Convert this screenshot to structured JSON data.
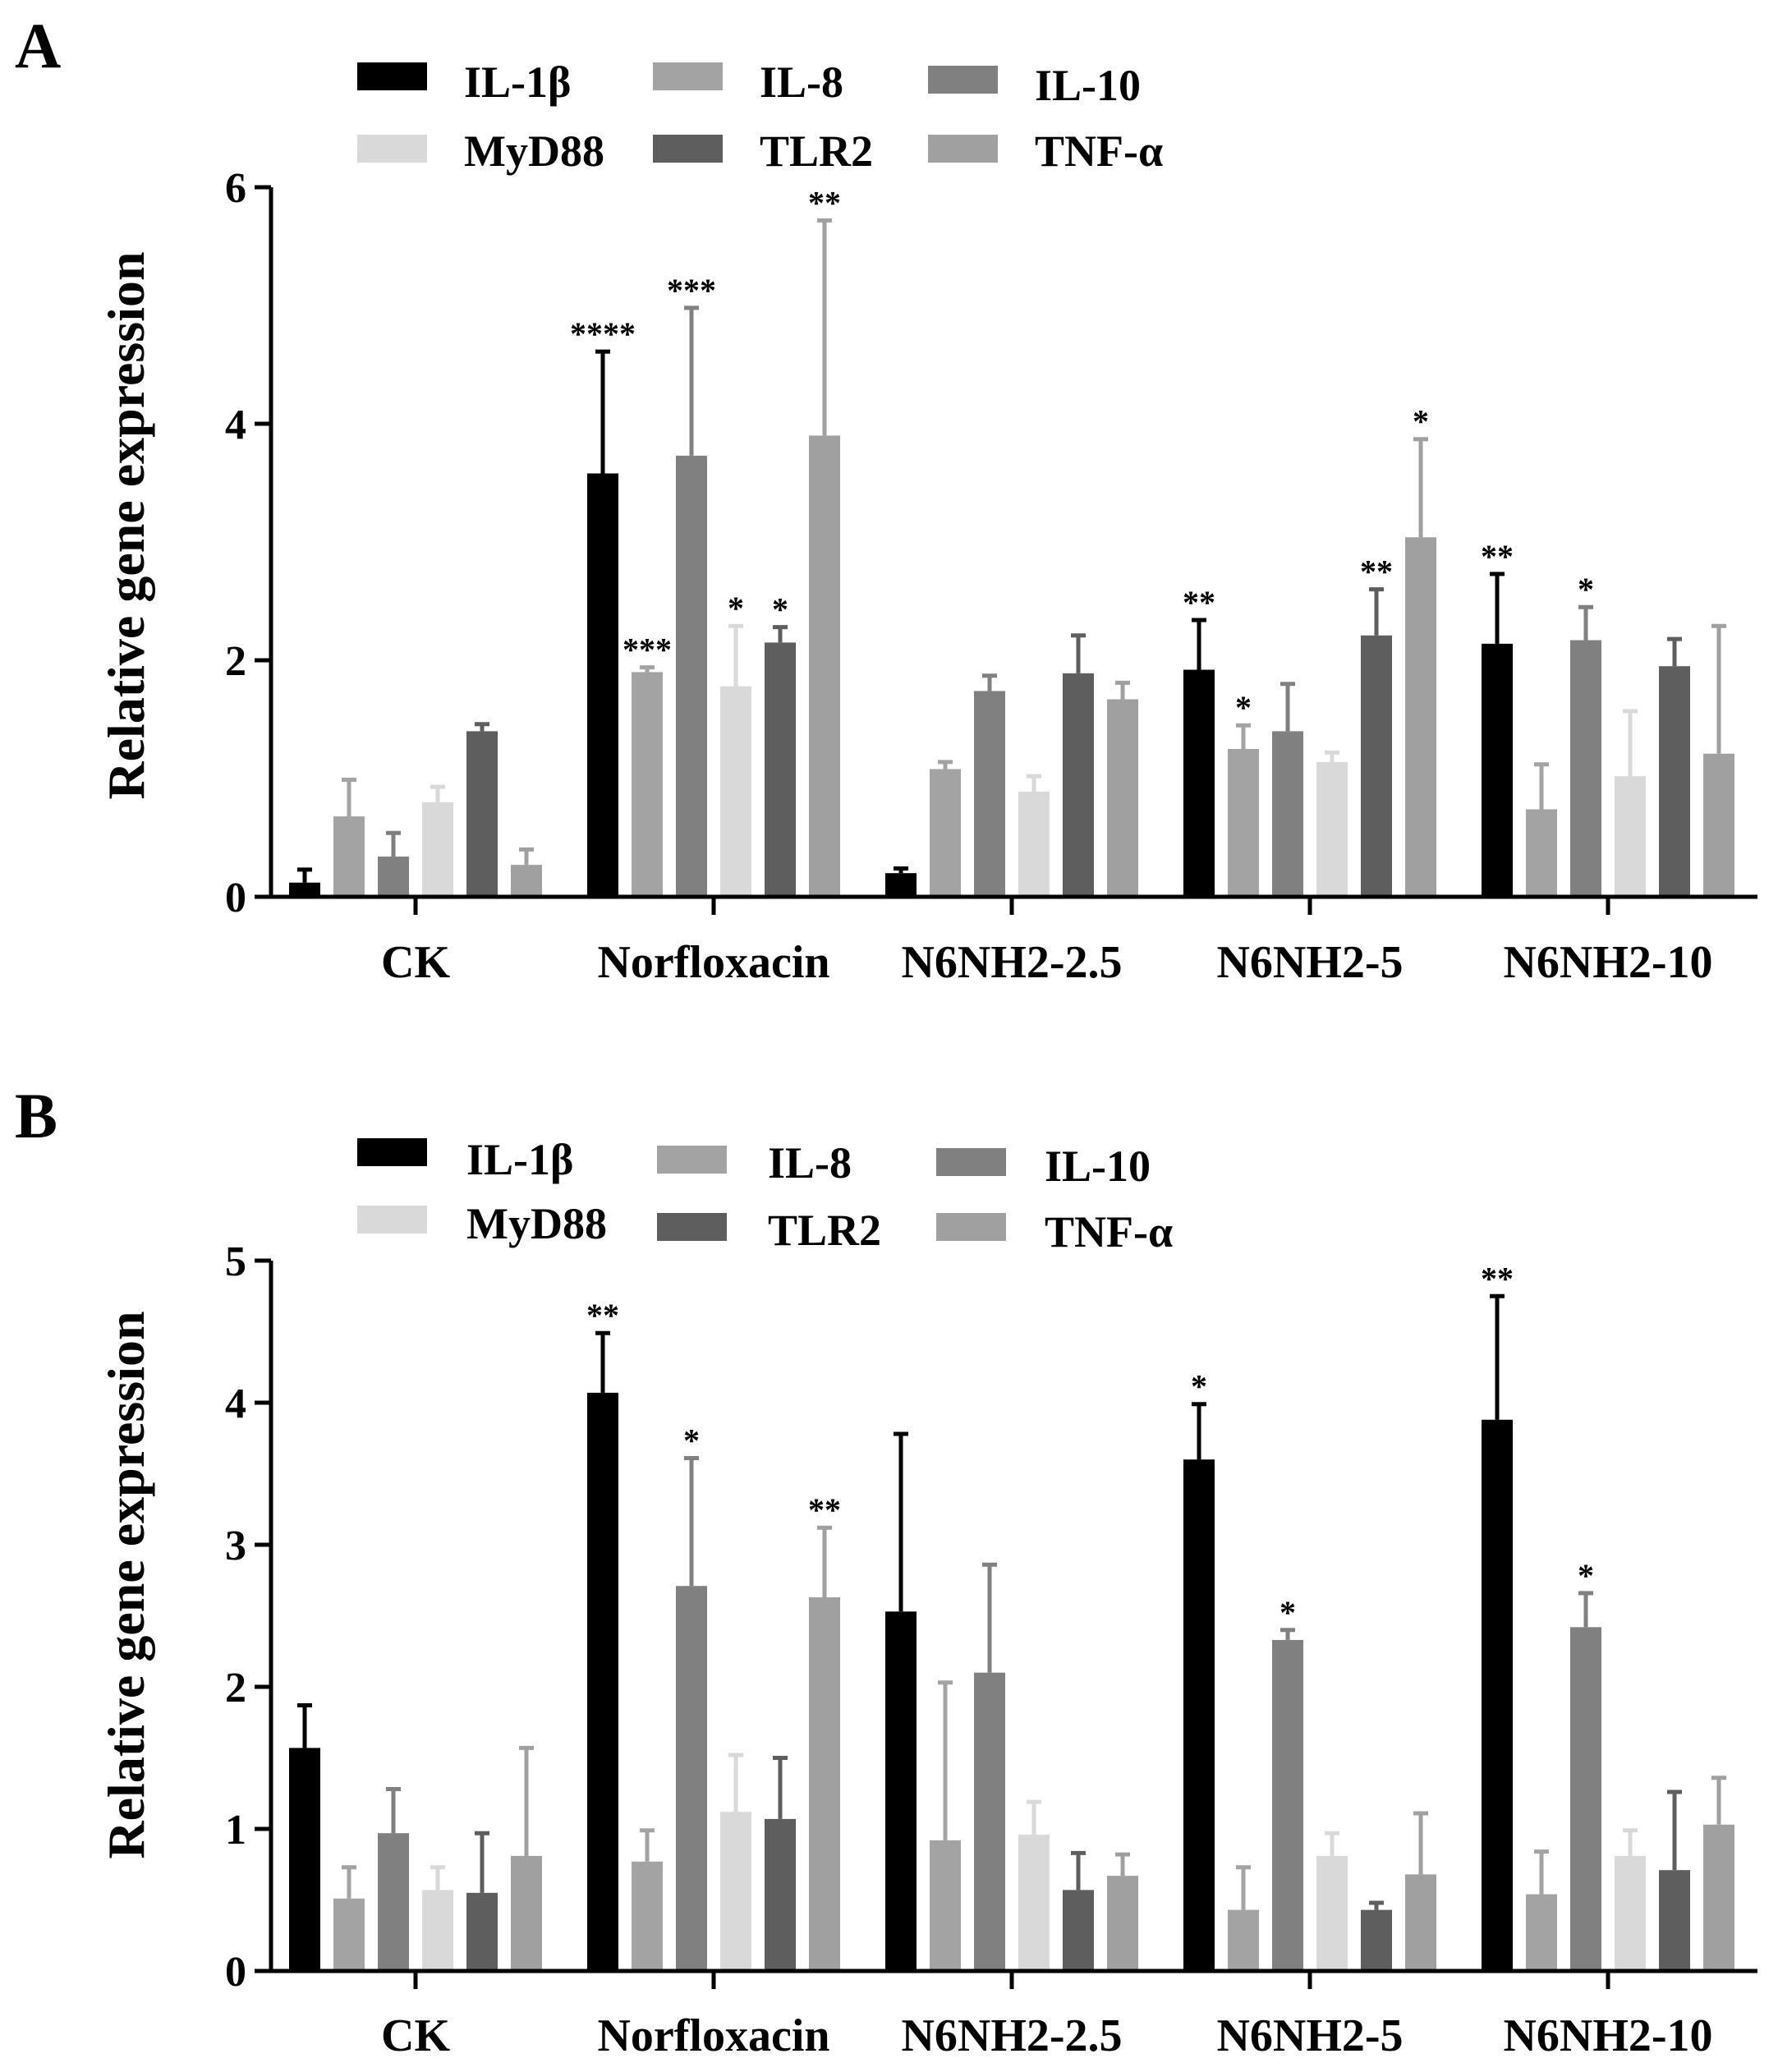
{
  "colors": {
    "IL-1β": "#000000",
    "IL-8": "#a3a3a3",
    "IL-10": "#808080",
    "MyD88": "#d9d9d9",
    "TLR2": "#5e5e5e",
    "TNF-α": "#a0a0a0",
    "axis": "#000000"
  },
  "chart_data": [
    {
      "panel": "A",
      "type": "bar",
      "ylabel": "Relative gene expression",
      "xlabel": "",
      "ylim": [
        0,
        6
      ],
      "yticks": [
        "0",
        "2",
        "4",
        "6"
      ],
      "legend": [
        "IL-1β",
        "IL-8",
        "IL-10",
        "MyD88",
        "TLR2",
        "TNF-α"
      ],
      "categories": [
        "CK",
        "Norfloxacin",
        "N6NH2-2.5",
        "N6NH2-5",
        "N6NH2-10"
      ],
      "series": [
        {
          "name": "IL-1β",
          "values": [
            0.12,
            3.58,
            0.2,
            1.92,
            2.14
          ],
          "errors": [
            0.11,
            1.03,
            0.04,
            0.42,
            0.59
          ],
          "sig": [
            "",
            "****",
            "",
            "**",
            "**"
          ]
        },
        {
          "name": "IL-8",
          "values": [
            0.68,
            1.9,
            1.08,
            1.25,
            0.74
          ],
          "errors": [
            0.31,
            0.04,
            0.06,
            0.2,
            0.38
          ],
          "sig": [
            "",
            "***",
            "",
            "*",
            ""
          ]
        },
        {
          "name": "IL-10",
          "values": [
            0.34,
            3.73,
            1.74,
            1.4,
            2.17
          ],
          "errors": [
            0.2,
            1.25,
            0.13,
            0.4,
            0.28
          ],
          "sig": [
            "",
            "***",
            "",
            "",
            "*"
          ]
        },
        {
          "name": "MyD88",
          "values": [
            0.8,
            1.78,
            0.89,
            1.14,
            1.02
          ],
          "errors": [
            0.13,
            0.51,
            0.13,
            0.08,
            0.55
          ],
          "sig": [
            "",
            "*",
            "",
            "",
            ""
          ]
        },
        {
          "name": "TLR2",
          "values": [
            1.4,
            2.15,
            1.89,
            2.21,
            1.95
          ],
          "errors": [
            0.06,
            0.13,
            0.32,
            0.39,
            0.23
          ],
          "sig": [
            "",
            "*",
            "",
            "**",
            ""
          ]
        },
        {
          "name": "TNF-α",
          "values": [
            0.27,
            3.9,
            1.67,
            3.04,
            1.21
          ],
          "errors": [
            0.13,
            1.82,
            0.14,
            0.83,
            1.08
          ],
          "sig": [
            "",
            "**",
            "",
            "*",
            ""
          ]
        }
      ]
    },
    {
      "panel": "B",
      "type": "bar",
      "ylabel": "Relative gene expression",
      "xlabel": "",
      "ylim": [
        0,
        5
      ],
      "yticks": [
        "0",
        "1",
        "2",
        "3",
        "4",
        "5"
      ],
      "legend": [
        "IL-1β",
        "IL-8",
        "IL-10",
        "MyD88",
        "TLR2",
        "TNF-α"
      ],
      "categories": [
        "CK",
        "Norfloxacin",
        "N6NH2-2.5",
        "N6NH2-5",
        "N6NH2-10"
      ],
      "series": [
        {
          "name": "IL-1β",
          "values": [
            1.57,
            4.07,
            2.53,
            3.6,
            3.88
          ],
          "errors": [
            0.3,
            0.42,
            1.25,
            0.39,
            0.87
          ],
          "sig": [
            "",
            "**",
            "",
            "*",
            "**"
          ]
        },
        {
          "name": "IL-8",
          "values": [
            0.51,
            0.77,
            0.92,
            0.43,
            0.54
          ],
          "errors": [
            0.22,
            0.22,
            1.11,
            0.3,
            0.3
          ],
          "sig": [
            "",
            "",
            "",
            "",
            ""
          ]
        },
        {
          "name": "IL-10",
          "values": [
            0.97,
            2.71,
            2.1,
            2.33,
            2.42
          ],
          "errors": [
            0.31,
            0.9,
            0.76,
            0.07,
            0.24
          ],
          "sig": [
            "",
            "*",
            "",
            "*",
            "*"
          ]
        },
        {
          "name": "MyD88",
          "values": [
            0.57,
            1.12,
            0.96,
            0.81,
            0.81
          ],
          "errors": [
            0.16,
            0.4,
            0.23,
            0.16,
            0.18
          ],
          "sig": [
            "",
            "",
            "",
            "",
            ""
          ]
        },
        {
          "name": "TLR2",
          "values": [
            0.55,
            1.07,
            0.57,
            0.43,
            0.71
          ],
          "errors": [
            0.42,
            0.43,
            0.26,
            0.05,
            0.55
          ],
          "sig": [
            "",
            "",
            "",
            "",
            ""
          ]
        },
        {
          "name": "TNF-α",
          "values": [
            0.81,
            2.63,
            0.67,
            0.68,
            1.03
          ],
          "errors": [
            0.76,
            0.49,
            0.15,
            0.43,
            0.33
          ],
          "sig": [
            "",
            "**",
            "",
            "",
            ""
          ]
        }
      ]
    }
  ]
}
